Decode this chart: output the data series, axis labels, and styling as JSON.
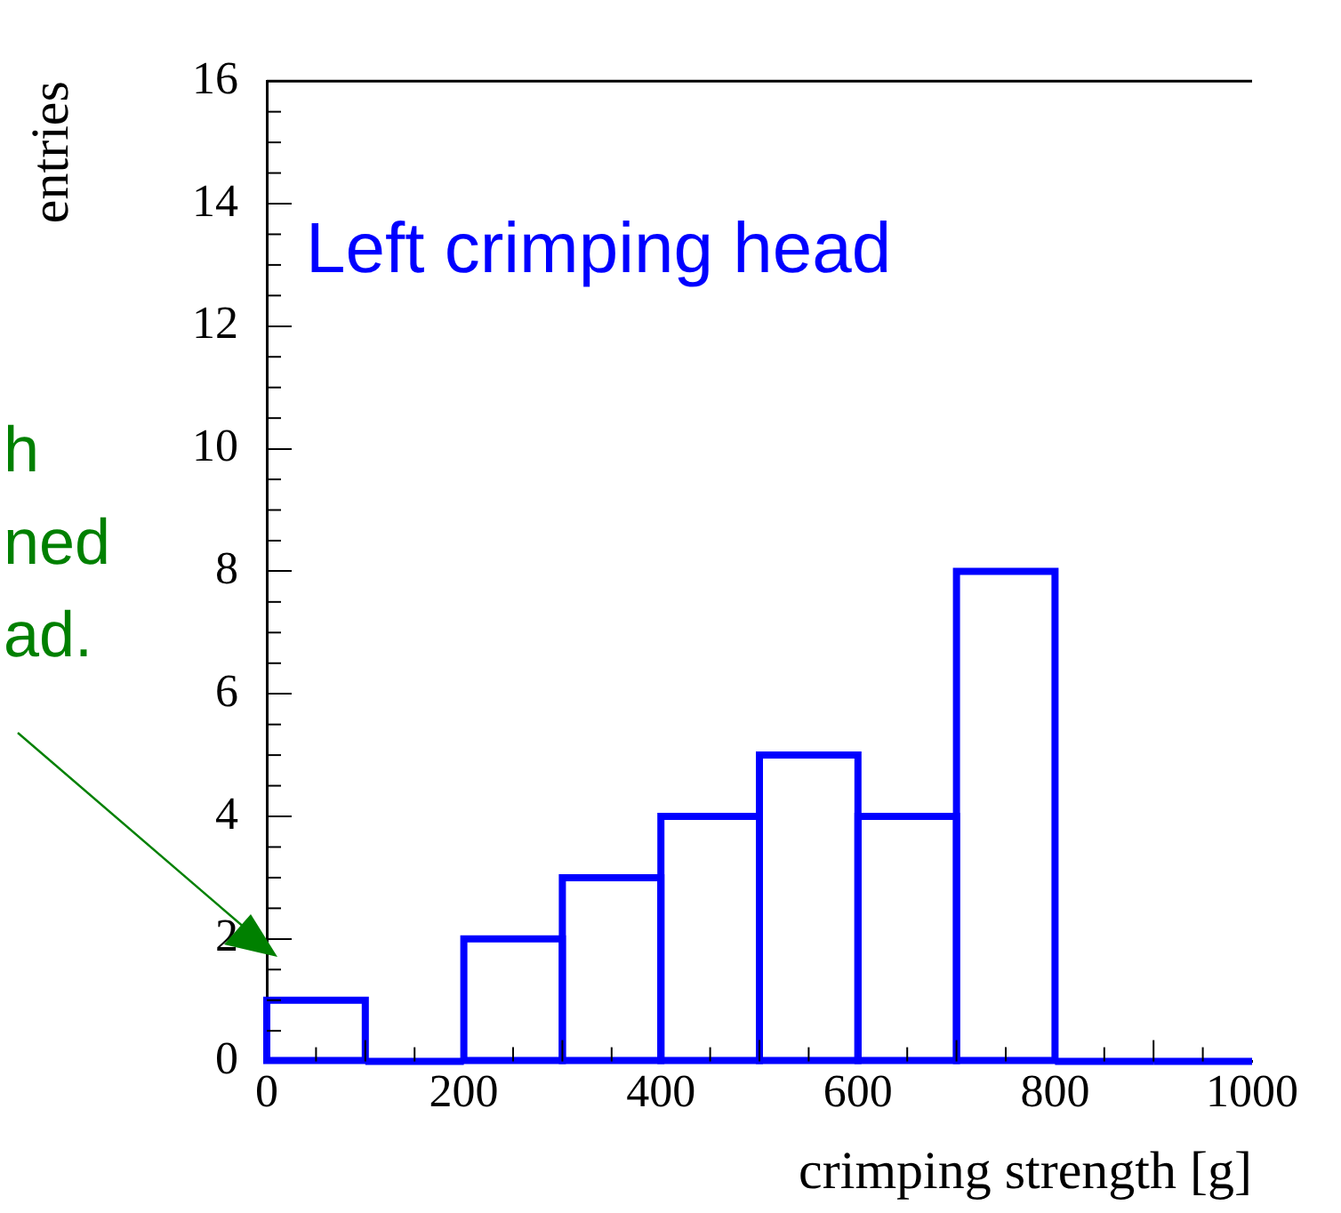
{
  "chart_data": {
    "type": "histogram",
    "xlabel": "crimping strength [g]",
    "ylabel": "entries",
    "bins": [
      0,
      100,
      200,
      300,
      400,
      500,
      600,
      700,
      800,
      900,
      1000
    ],
    "values": [
      1,
      0,
      2,
      3,
      4,
      5,
      4,
      8,
      0,
      0
    ],
    "color": "#0000ff",
    "xlim": [
      0,
      1000
    ],
    "xticks": [
      0,
      200,
      400,
      600,
      800,
      1000
    ],
    "ylim": [
      0,
      16
    ],
    "yticks": [
      0,
      2,
      4,
      6,
      8,
      10,
      12,
      14,
      16
    ],
    "grid": false,
    "legend": false,
    "annotations": [
      "Left crimping head",
      "h\nned\nad."
    ]
  }
}
